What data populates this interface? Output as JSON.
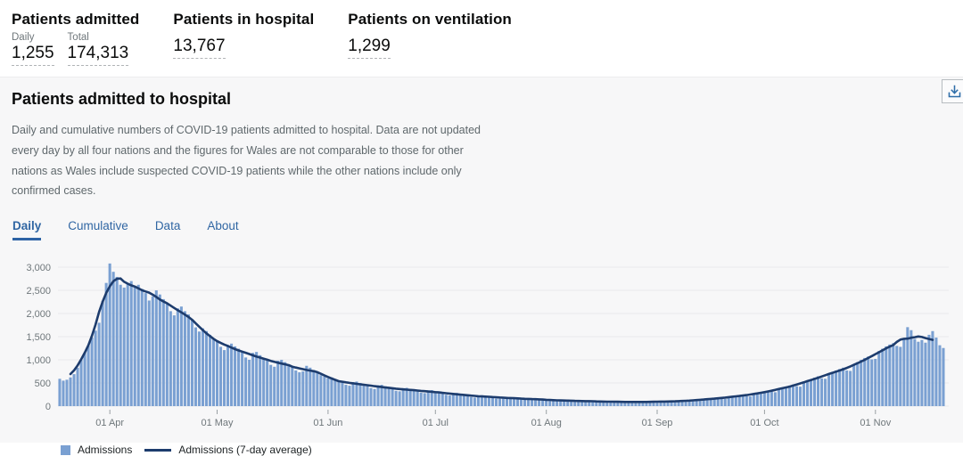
{
  "colors": {
    "bar": "#7aa0d2",
    "line": "#1d3c6d",
    "tab_blue": "#3066a3",
    "grid": "#e9eaec",
    "axis_text": "#6f777b",
    "icon_blue": "#2e6da8"
  },
  "stats": {
    "admitted": {
      "title": "Patients admitted",
      "daily_label": "Daily",
      "daily_value": "1,255",
      "total_label": "Total",
      "total_value": "174,313"
    },
    "in_hospital": {
      "title": "Patients in hospital",
      "value": "13,767"
    },
    "ventilation": {
      "title": "Patients on ventilation",
      "value": "1,299"
    }
  },
  "card": {
    "title": "Patients admitted to hospital",
    "description": "Daily and cumulative numbers of COVID-19 patients admitted to hospital. Data are not updated every day by all four nations and the figures for Wales are not comparable to those for other nations as Wales include suspected COVID-19 patients while the other nations include only confirmed cases.",
    "tabs": [
      {
        "label": "Daily",
        "active": true
      },
      {
        "label": "Cumulative",
        "active": false
      },
      {
        "label": "Data",
        "active": false
      },
      {
        "label": "About",
        "active": false
      }
    ]
  },
  "chart_data": {
    "type": "bar",
    "title": "",
    "xlabel": "",
    "ylabel": "",
    "ylim": [
      0,
      3100
    ],
    "grid": "horizontal",
    "legend_position": "bottom",
    "y_ticks": [
      {
        "label": "0",
        "value": 0
      },
      {
        "label": "500",
        "value": 500
      },
      {
        "label": "1,000",
        "value": 1000
      },
      {
        "label": "1,500",
        "value": 1500
      },
      {
        "label": "2,000",
        "value": 2000
      },
      {
        "label": "2,500",
        "value": 2500
      },
      {
        "label": "3,000",
        "value": 3000
      }
    ],
    "x_ticks": [
      {
        "label": "01 Apr",
        "day": 14
      },
      {
        "label": "01 May",
        "day": 44
      },
      {
        "label": "01 Jun",
        "day": 75
      },
      {
        "label": "01 Jul",
        "day": 105
      },
      {
        "label": "01 Aug",
        "day": 136
      },
      {
        "label": "01 Sep",
        "day": 167
      },
      {
        "label": "01 Oct",
        "day": 197
      },
      {
        "label": "01 Nov",
        "day": 228
      }
    ],
    "series": [
      {
        "name": "Admissions",
        "type": "bar",
        "values": [
          590,
          550,
          570,
          620,
          690,
          830,
          1000,
          1150,
          1310,
          1480,
          1630,
          1800,
          2270,
          2660,
          3080,
          2900,
          2790,
          2620,
          2560,
          2640,
          2700,
          2580,
          2620,
          2530,
          2440,
          2280,
          2370,
          2500,
          2410,
          2310,
          2200,
          2050,
          1960,
          2110,
          2150,
          2050,
          1980,
          1870,
          1700,
          1610,
          1680,
          1620,
          1540,
          1460,
          1390,
          1280,
          1210,
          1320,
          1350,
          1290,
          1240,
          1160,
          1050,
          1000,
          1150,
          1170,
          1100,
          1040,
          980,
          890,
          850,
          980,
          1000,
          950,
          900,
          860,
          770,
          730,
          750,
          870,
          830,
          780,
          740,
          670,
          640,
          600,
          620,
          580,
          550,
          520,
          460,
          440,
          520,
          530,
          500,
          470,
          450,
          390,
          370,
          450,
          460,
          430,
          400,
          380,
          330,
          320,
          390,
          395,
          370,
          350,
          330,
          290,
          280,
          340,
          345,
          320,
          305,
          285,
          245,
          230,
          280,
          285,
          265,
          250,
          230,
          195,
          185,
          230,
          235,
          220,
          205,
          195,
          165,
          160,
          195,
          200,
          185,
          175,
          165,
          140,
          135,
          165,
          170,
          160,
          150,
          145,
          120,
          110,
          135,
          140,
          130,
          125,
          120,
          100,
          95,
          120,
          125,
          115,
          110,
          105,
          90,
          85,
          105,
          110,
          100,
          95,
          92,
          80,
          78,
          98,
          100,
          96,
          92,
          88,
          80,
          78,
          95,
          105,
          110,
          105,
          100,
          88,
          85,
          110,
          118,
          122,
          128,
          132,
          115,
          112,
          145,
          155,
          165,
          172,
          180,
          160,
          155,
          200,
          210,
          220,
          232,
          245,
          215,
          210,
          265,
          285,
          300,
          320,
          335,
          310,
          300,
          375,
          395,
          420,
          445,
          465,
          430,
          420,
          530,
          555,
          585,
          615,
          645,
          600,
          590,
          710,
          740,
          770,
          800,
          830,
          770,
          760,
          900,
          950,
          1000,
          1040,
          1070,
          1010,
          1020,
          1190,
          1240,
          1290,
          1330,
          1360,
          1300,
          1280,
          1440,
          1705,
          1640,
          1450,
          1390,
          1430,
          1370,
          1540,
          1620,
          1480,
          1315,
          1255
        ]
      },
      {
        "name": "Admissions (7-day average)",
        "type": "line",
        "derived": "7-day centered average of Admissions"
      }
    ]
  },
  "legend": [
    {
      "label": "Admissions",
      "swatch": "square"
    },
    {
      "label": "Admissions (7-day average)",
      "swatch": "line"
    }
  ]
}
